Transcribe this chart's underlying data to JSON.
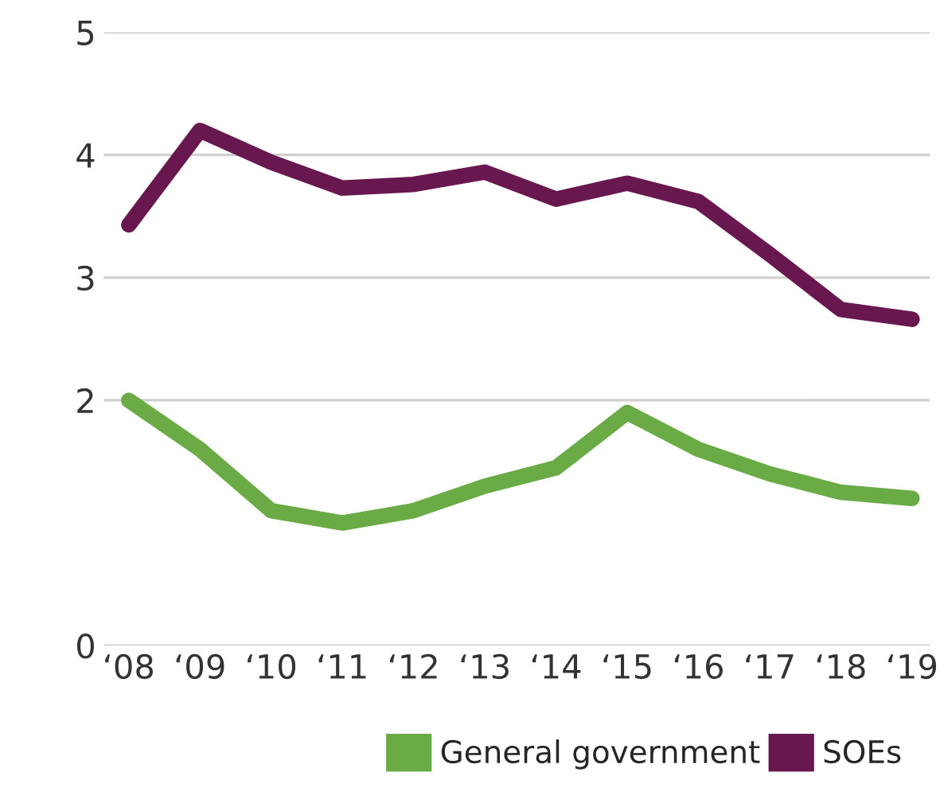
{
  "chart_data": {
    "type": "line",
    "categories": [
      "‘08",
      "‘09",
      "‘10",
      "‘11",
      "‘12",
      "‘13",
      "‘14",
      "‘15",
      "‘16",
      "‘17",
      "‘18",
      "‘19"
    ],
    "series": [
      {
        "name": "General government",
        "color": "#6aab46",
        "values": [
          2.0,
          1.6,
          1.1,
          1.0,
          1.1,
          1.3,
          1.45,
          1.9,
          1.6,
          1.4,
          1.25,
          1.2
        ]
      },
      {
        "name": "SOEs",
        "color": "#69174f",
        "values": [
          3.43,
          4.2,
          3.94,
          3.73,
          3.76,
          3.86,
          3.64,
          3.77,
          3.62,
          3.19,
          2.74,
          2.66
        ]
      }
    ],
    "ylim": [
      0,
      5
    ],
    "yticks": [
      0,
      2,
      3,
      4,
      5
    ],
    "grid": "y",
    "legend": "bottom right",
    "marker": "none",
    "line_style": "solid"
  }
}
